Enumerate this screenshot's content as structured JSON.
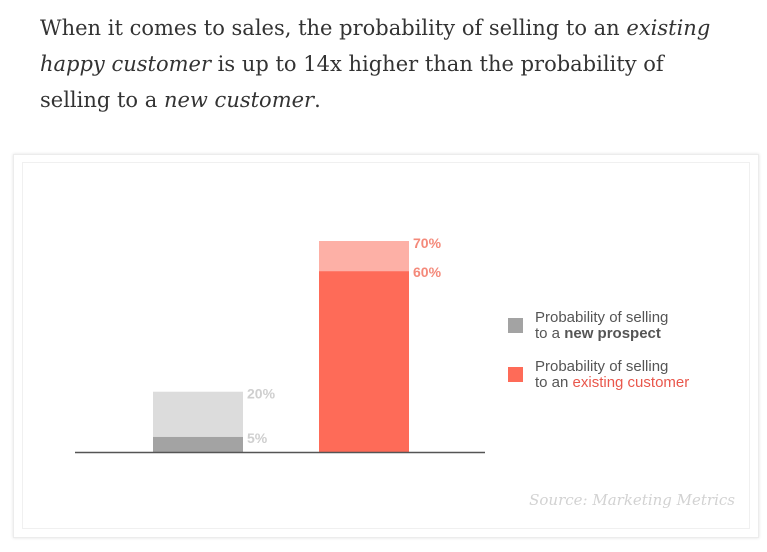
{
  "intro": {
    "part1": "When it comes to sales, the probability of selling to an ",
    "em1": "existing happy customer",
    "part2": " is up to 14x higher than the probability of selling to a ",
    "em2": "new customer",
    "part3": "."
  },
  "chart_data": {
    "type": "bar",
    "categories": [
      "new prospect",
      "existing customer"
    ],
    "series": [
      {
        "values": [
          5,
          60
        ]
      },
      {
        "values": [
          20,
          70
        ]
      }
    ],
    "labels": {
      "new_low": "5%",
      "new_high": "20%",
      "existing_low": "60%",
      "existing_high": "70%"
    },
    "ylim": [
      0,
      70
    ],
    "grid": false,
    "legend_placement": "right",
    "colors": {
      "new_base": "#a3a3a3",
      "new_range": "#dcdcdc",
      "existing_base": "#fe6b58",
      "existing_range": "#fdb0a6",
      "axis": "#555555"
    }
  },
  "legend": {
    "new": {
      "line1": "Probability of selling",
      "line2_prefix": "to a ",
      "line2_highlight": "new prospect",
      "color": "#a3a3a3"
    },
    "existing": {
      "line1": "Probability of selling",
      "line2_prefix": "to an ",
      "line2_highlight": "existing customer",
      "color": "#fe6b58"
    }
  },
  "source": "Source: Marketing Metrics"
}
